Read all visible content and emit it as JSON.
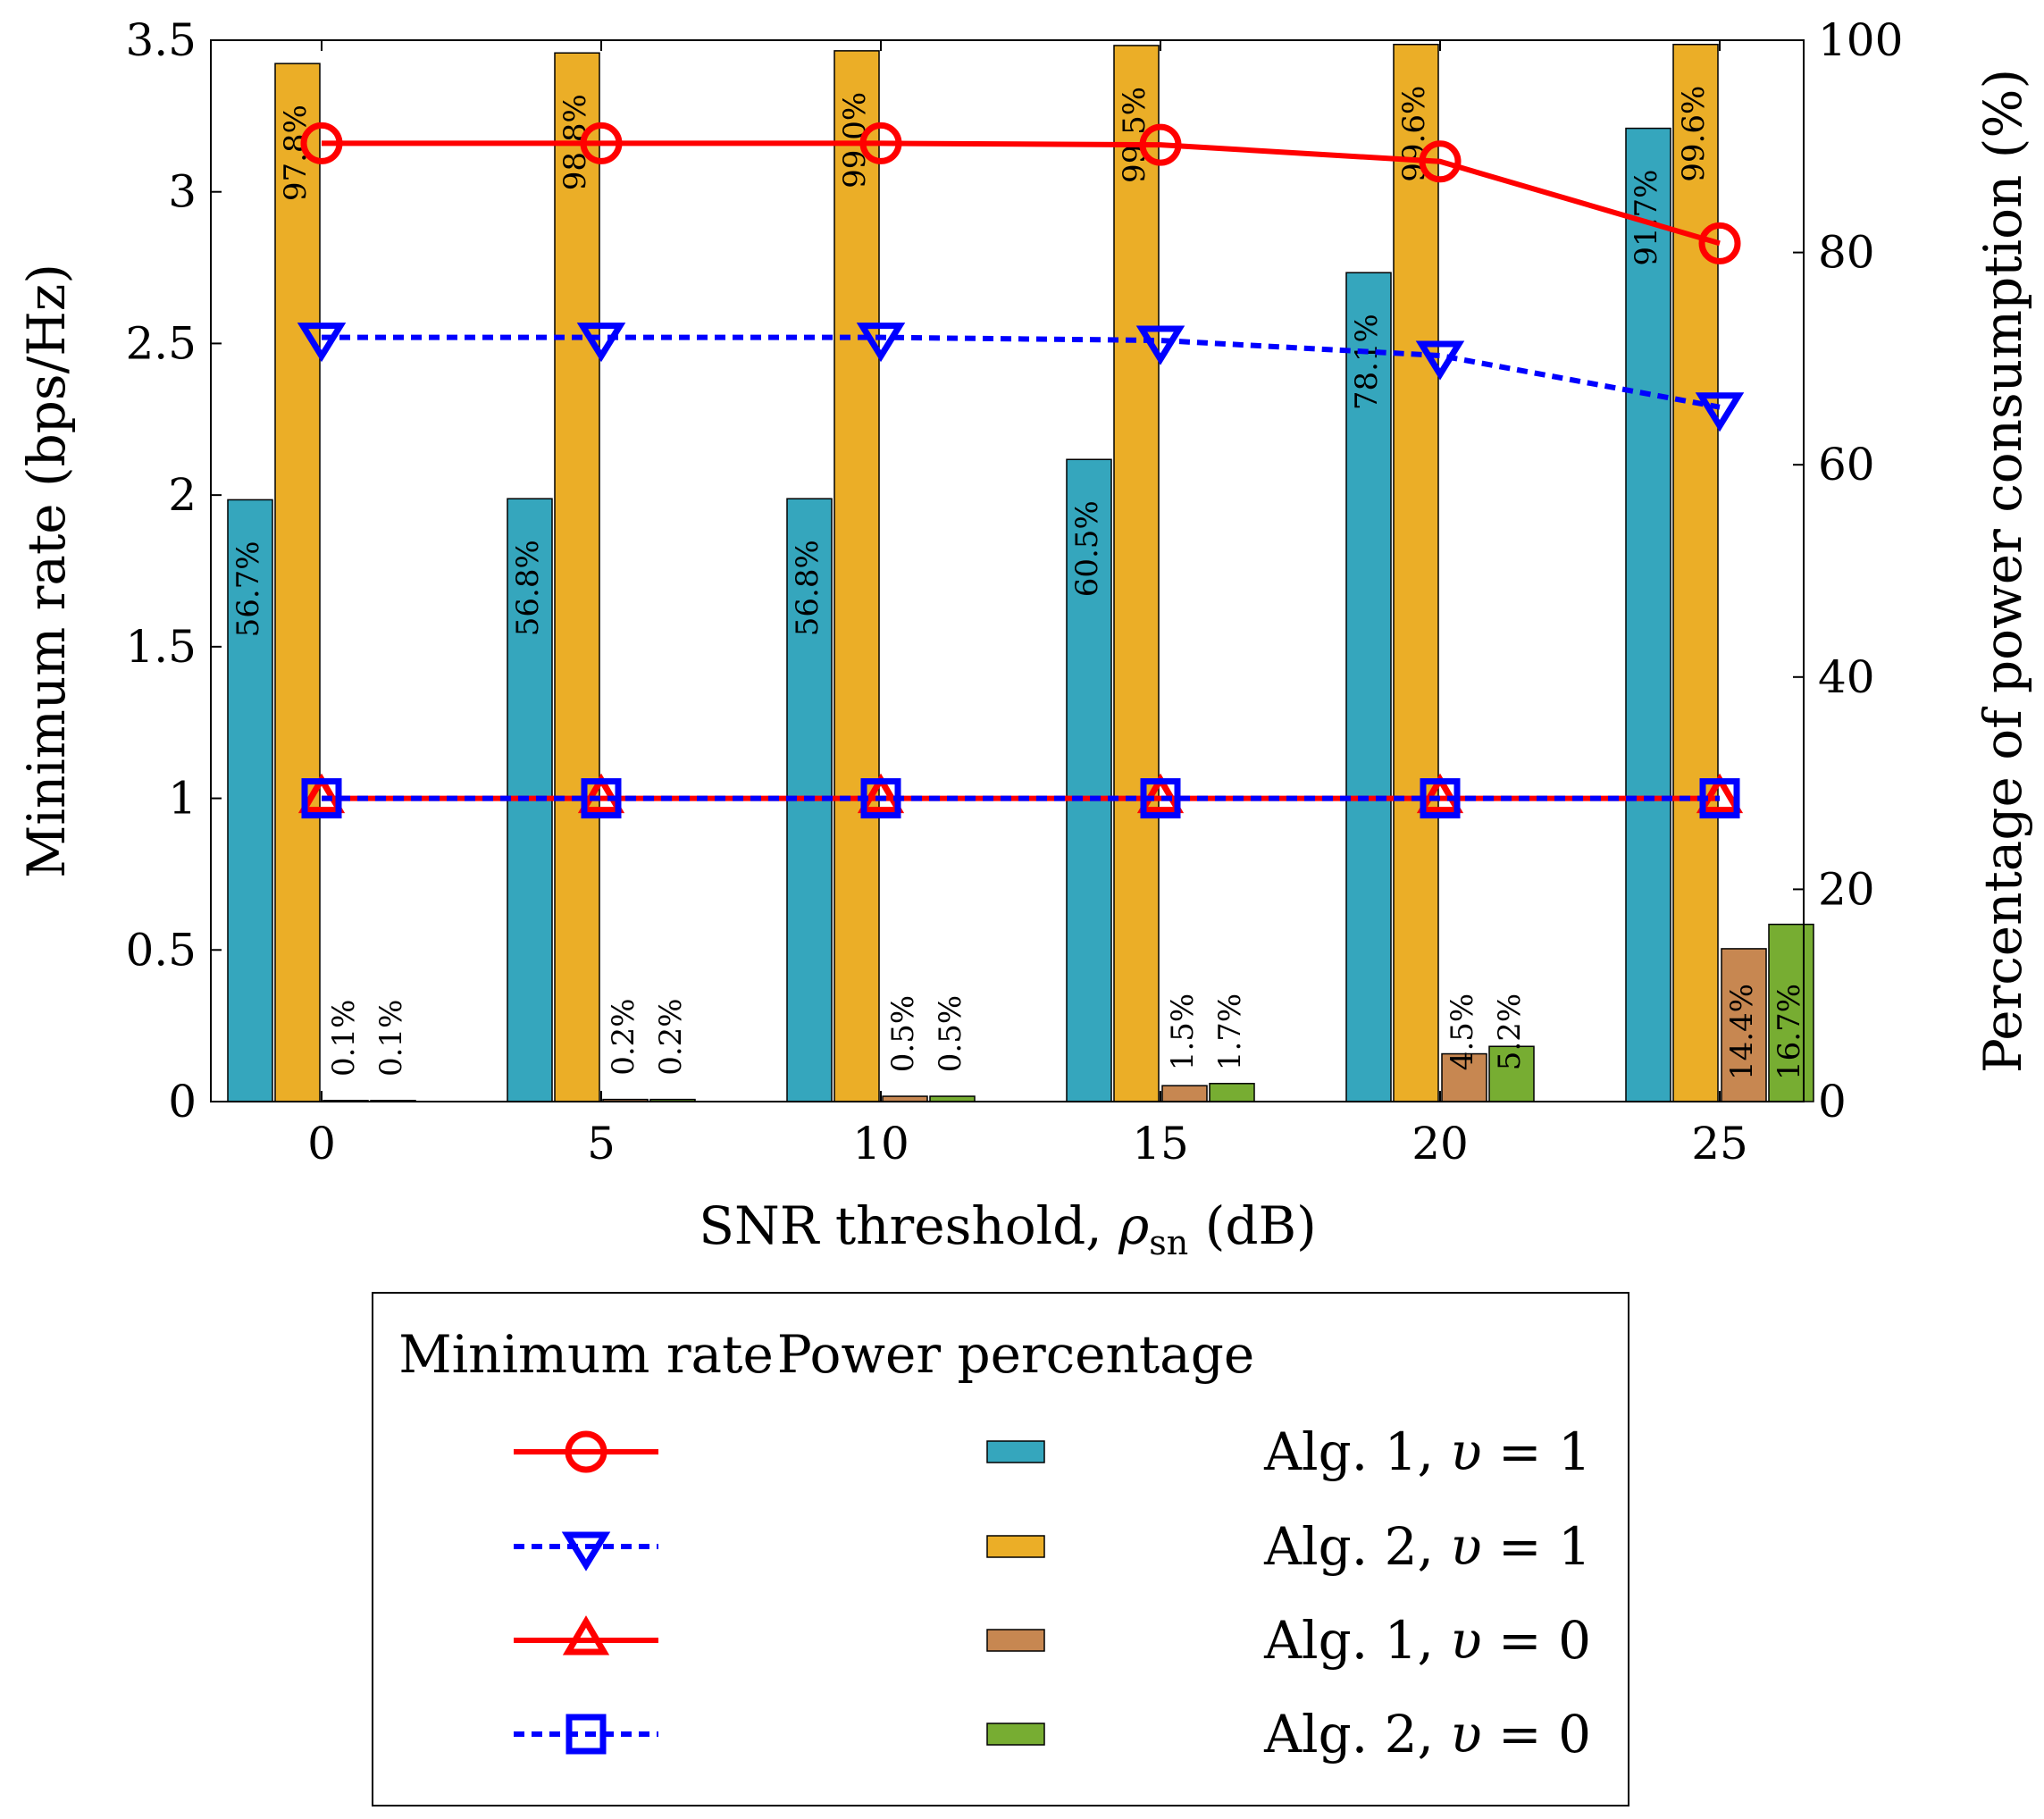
{
  "chart_data": {
    "type": "bar",
    "xlabel": "SNR threshold, ρsn (dB)",
    "xlabel_main": "SNR threshold, ",
    "xlabel_symbol": "ρ",
    "xlabel_sub": "sn",
    "xlabel_unit": " (dB)",
    "ylabel_left": "Minimum rate (bps/Hz)",
    "ylabel_right": "Percentage of power consumption (%)",
    "categories": [
      0,
      5,
      10,
      15,
      20,
      25
    ],
    "category_labels": [
      "0",
      "5",
      "10",
      "15",
      "20",
      "25"
    ],
    "ylim_left": [
      0,
      3.5
    ],
    "yticks_left": [
      "0",
      "0.5",
      "1",
      "1.5",
      "2",
      "2.5",
      "3",
      "3.5"
    ],
    "ylim_right": [
      0,
      100
    ],
    "yticks_right": [
      "0",
      "20",
      "40",
      "60",
      "80",
      "100"
    ],
    "bar_series": [
      {
        "name": "Alg. 1, υ = 1",
        "color": "#35A6BD",
        "values": [
          56.7,
          56.8,
          56.8,
          60.5,
          78.1,
          91.7
        ],
        "labels": [
          "56.7%",
          "56.8%",
          "56.8%",
          "60.5%",
          "78.1%",
          "91.7%"
        ]
      },
      {
        "name": "Alg. 2, υ = 1",
        "color": "#EBAE27",
        "values": [
          97.8,
          98.8,
          99.0,
          99.5,
          99.6,
          99.6
        ],
        "labels": [
          "97.8%",
          "98.8%",
          "99.0%",
          "99.5%",
          "99.6%",
          "99.6%"
        ]
      },
      {
        "name": "Alg. 1, υ = 0",
        "color": "#C78751",
        "values": [
          0.1,
          0.2,
          0.5,
          1.5,
          4.5,
          14.4
        ],
        "labels": [
          "0.1%",
          "0.2%",
          "0.5%",
          "1.5%",
          "4.5%",
          "14.4%"
        ]
      },
      {
        "name": "Alg. 2, υ = 0",
        "color": "#77AD32",
        "values": [
          0.1,
          0.2,
          0.5,
          1.7,
          5.2,
          16.7
        ],
        "labels": [
          "0.1%",
          "0.2%",
          "0.5%",
          "1.7%",
          "5.2%",
          "16.7%"
        ]
      }
    ],
    "line_series": [
      {
        "name": "Alg. 1, υ = 1",
        "color": "#FF0000",
        "dash": "solid",
        "marker": "circle",
        "values": [
          3.16,
          3.16,
          3.16,
          3.155,
          3.1,
          2.83
        ]
      },
      {
        "name": "Alg. 2, υ = 1",
        "color": "#0000FF",
        "dash": "dotted",
        "marker": "triangle-down",
        "values": [
          2.52,
          2.52,
          2.52,
          2.51,
          2.46,
          2.29
        ]
      },
      {
        "name": "Alg. 1, υ = 0",
        "color": "#FF0000",
        "dash": "solid",
        "marker": "triangle-up",
        "values": [
          1,
          1,
          1,
          1,
          1,
          1
        ]
      },
      {
        "name": "Alg. 2, υ = 0",
        "color": "#0000FF",
        "dash": "dotted",
        "marker": "square",
        "values": [
          1,
          1,
          1,
          1,
          1,
          1
        ]
      }
    ],
    "legend": {
      "header_rate": "Minimum rate",
      "header_power": "Power percentage",
      "entries": [
        "Alg. 1, υ = 1",
        "Alg. 2, υ = 1",
        "Alg. 1, υ = 0",
        "Alg. 2, υ = 0"
      ],
      "entry_alg": [
        "Alg. 1, ",
        "Alg. 2, ",
        "Alg. 1, ",
        "Alg. 2, "
      ],
      "entry_symbol": [
        "υ",
        "υ",
        "υ",
        "υ"
      ],
      "entry_value": [
        " = 1",
        " = 1",
        " = 0",
        " = 0"
      ],
      "placement": "bottom"
    }
  }
}
